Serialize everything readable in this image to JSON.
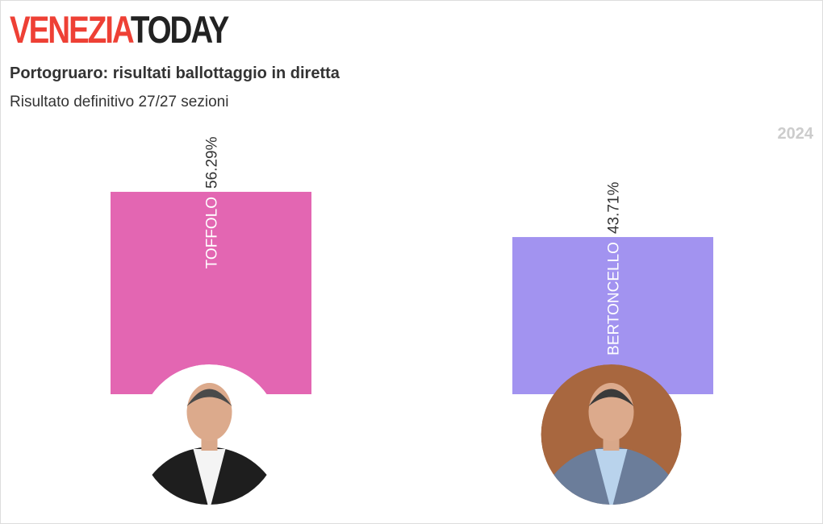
{
  "logo": {
    "part1": "VENEZIA",
    "part2": "TODAY"
  },
  "header": {
    "title": "Portogruaro: risultati ballottaggio in diretta",
    "subtitle": "Risultato definitivo 27/27 sezioni",
    "year": "2024"
  },
  "chart_data": {
    "type": "bar",
    "categories": [
      "TOFFOLO",
      "BERTONCELLO"
    ],
    "values": [
      56.29,
      43.71
    ],
    "value_labels": [
      "56.29%",
      "43.71%"
    ],
    "colors": [
      "#e366b2",
      "#a293f0"
    ],
    "ylim": [
      0,
      60
    ],
    "grid": false,
    "candidate_photos": [
      "avatar-toffolo",
      "avatar-bertoncello"
    ]
  }
}
